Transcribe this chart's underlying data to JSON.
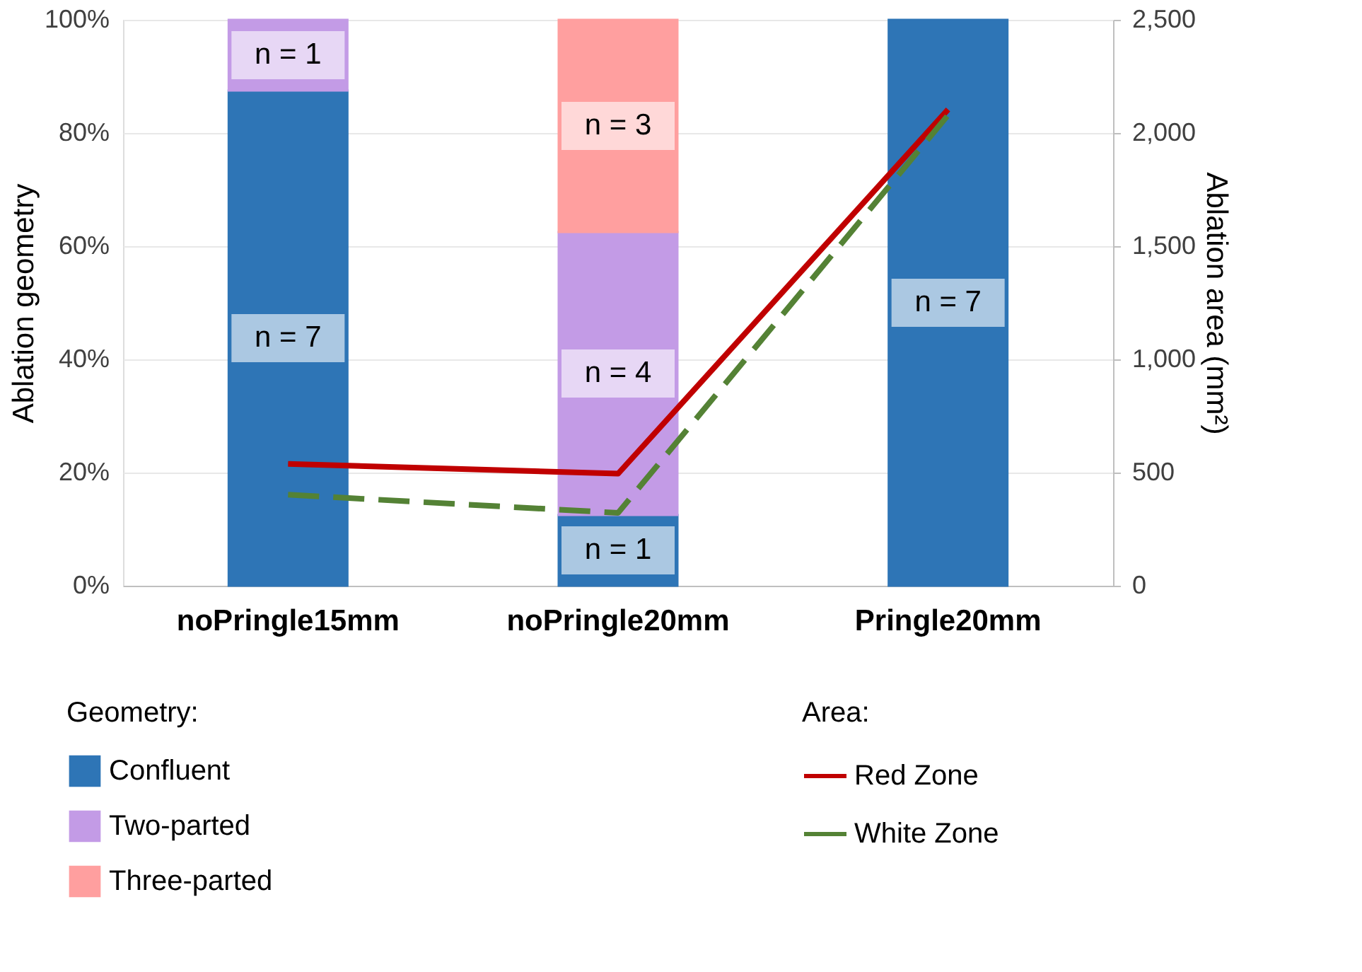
{
  "chart_data": {
    "type": "bar",
    "stacked": true,
    "categories": [
      "noPringle15mm",
      "noPringle20mm",
      "Pringle20mm"
    ],
    "ylabel": "Ablation geometry",
    "y2label": "Ablation area (mm²)",
    "legend_title": "Geometry:",
    "ylim": [
      0,
      100
    ],
    "yticks": [
      {
        "value": 0,
        "label": "0%"
      },
      {
        "value": 20,
        "label": "20%"
      },
      {
        "value": 40,
        "label": "40%"
      },
      {
        "value": 60,
        "label": "60%"
      },
      {
        "value": 80,
        "label": "80%"
      },
      {
        "value": 100,
        "label": "100%"
      }
    ],
    "y2lim": [
      0,
      2500
    ],
    "y2ticks": [
      0,
      500,
      {
        "value": 1000,
        "label": "1,000"
      },
      {
        "value": 1500,
        "label": "1,500"
      },
      {
        "value": 2000,
        "label": "2,000"
      },
      {
        "value": 2500,
        "label": "2,500"
      }
    ],
    "grid": "y",
    "legend": "bottom",
    "marker": "none",
    "series": [
      {
        "name": "Confluent",
        "color": "#2e75b6",
        "values": [
          87.5,
          12.5,
          100
        ]
      },
      {
        "name": "Two-parted",
        "color": "#c39be6",
        "values": [
          12.5,
          50,
          null
        ]
      },
      {
        "name": "Three-parted",
        "color": "#ff9f9f",
        "values": [
          null,
          37.5,
          null
        ]
      },
      {
        "name": "Red Zone",
        "type": "line",
        "axis": "y2",
        "color": "#c00000",
        "line_style": "solid",
        "values": [
          538,
          495,
          2104
        ]
      },
      {
        "name": "White Zone",
        "type": "line",
        "axis": "y2",
        "color": "#548235",
        "line_style": "dashed",
        "values": [
          402,
          322,
          2079
        ]
      }
    ],
    "annotations": [
      "Area:",
      "n = 7",
      "n = 1",
      "n = 7",
      "n = 1",
      "n = 4",
      "n = 3"
    ]
  }
}
